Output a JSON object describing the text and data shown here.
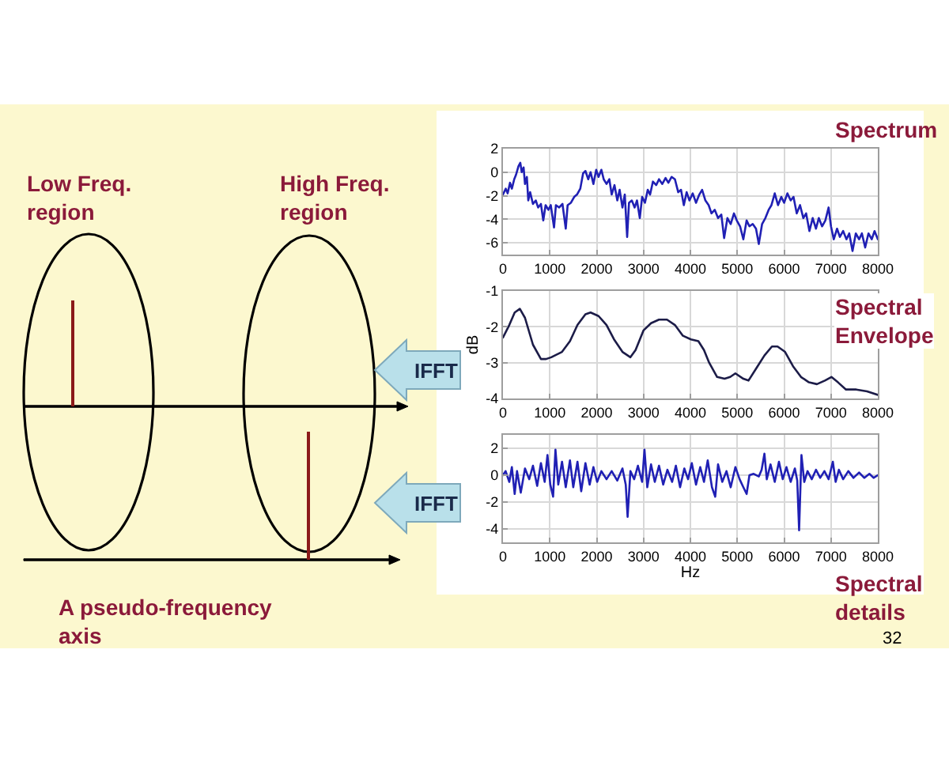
{
  "chart_data": [
    {
      "type": "other",
      "annotations": [
        "Low Freq. region",
        "High Freq. region",
        "IFFT",
        "IFFT",
        "A pseudo-frequency axis",
        "32"
      ]
    },
    {
      "type": "line",
      "title": "Spectrum",
      "grid": true,
      "xlim": [
        0,
        8000
      ],
      "xticks": [
        0,
        1000,
        2000,
        3000,
        4000,
        5000,
        6000,
        7000,
        8000
      ],
      "ylim": [
        -7,
        2
      ],
      "yticks": [
        -6,
        -4,
        -2,
        0,
        2
      ],
      "x": [
        0,
        60,
        100,
        150,
        190,
        240,
        280,
        330,
        370,
        400,
        440,
        470,
        510,
        540,
        580,
        640,
        700,
        750,
        810,
        860,
        910,
        970,
        1020,
        1090,
        1130,
        1200,
        1270,
        1340,
        1380,
        1450,
        1520,
        1580,
        1650,
        1710,
        1760,
        1820,
        1870,
        1930,
        1990,
        2040,
        2100,
        2150,
        2210,
        2270,
        2320,
        2380,
        2440,
        2490,
        2550,
        2600,
        2650,
        2690,
        2750,
        2810,
        2860,
        2920,
        2970,
        3030,
        3090,
        3140,
        3200,
        3270,
        3330,
        3400,
        3470,
        3530,
        3600,
        3670,
        3740,
        3800,
        3860,
        3920,
        3980,
        4050,
        4120,
        4190,
        4250,
        4320,
        4390,
        4450,
        4520,
        4590,
        4660,
        4720,
        4790,
        4860,
        4930,
        4990,
        5060,
        5130,
        5200,
        5260,
        5330,
        5400,
        5460,
        5530,
        5600,
        5670,
        5730,
        5800,
        5870,
        5940,
        6000,
        6070,
        6140,
        6200,
        6270,
        6340,
        6410,
        6470,
        6540,
        6610,
        6680,
        6740,
        6810,
        6880,
        6950,
        7000,
        7060,
        7130,
        7190,
        7260,
        7330,
        7390,
        7460,
        7530,
        7600,
        7660,
        7730,
        7800,
        7870,
        7930,
        8000
      ],
      "series": [
        {
          "color": "#2020b4",
          "values": [
            -1.9,
            -1.4,
            -1.8,
            -0.9,
            -1.4,
            -0.6,
            -0.2,
            0.5,
            0.8,
            0,
            0.4,
            -1,
            -0.4,
            -2.4,
            -1.7,
            -2.7,
            -2.4,
            -3,
            -2.7,
            -4.1,
            -2.8,
            -3.2,
            -2.8,
            -4.7,
            -2.8,
            -3,
            -2.7,
            -4.8,
            -2.8,
            -2.6,
            -2.1,
            -1.9,
            -1.4,
            -0.1,
            0.1,
            -0.6,
            0,
            -1,
            0.2,
            -0.4,
            0.2,
            -0.6,
            -1,
            -0.6,
            -1.9,
            -1.1,
            -2.4,
            -1.5,
            -3,
            -1.9,
            -5.5,
            -2.6,
            -2.4,
            -3,
            -2.4,
            -3.9,
            -2.1,
            -2.6,
            -1.5,
            -1.9,
            -0.8,
            -1.1,
            -0.6,
            -1,
            -0.5,
            -0.9,
            -0.4,
            -0.6,
            -1.7,
            -1.5,
            -2.8,
            -1.7,
            -2.4,
            -1.8,
            -2.6,
            -1.9,
            -1.5,
            -2.4,
            -2.8,
            -3.5,
            -3.2,
            -3.9,
            -3.6,
            -5.6,
            -3.9,
            -4.4,
            -3.5,
            -4.1,
            -4.6,
            -5.7,
            -4.1,
            -4.6,
            -4.4,
            -4.8,
            -6.1,
            -4.4,
            -3.9,
            -3.2,
            -2.8,
            -1.8,
            -2.8,
            -2.1,
            -2.6,
            -1.8,
            -2.4,
            -2.1,
            -3.5,
            -2.8,
            -3.9,
            -3.5,
            -5,
            -3.9,
            -4.8,
            -3.9,
            -4.6,
            -4.1,
            -3,
            -4.6,
            -5.7,
            -4.8,
            -5.5,
            -5,
            -5.7,
            -5.2,
            -6.7,
            -5.2,
            -5.7,
            -5.2,
            -6.4,
            -5.2,
            -5.7,
            -5,
            -5.7
          ]
        }
      ]
    },
    {
      "type": "line",
      "title": "Spectral Envelope",
      "ylabel": "dB",
      "grid": true,
      "xlim": [
        0,
        8000
      ],
      "xticks": [
        0,
        1000,
        2000,
        3000,
        4000,
        5000,
        6000,
        7000,
        8000
      ],
      "ylim": [
        -4,
        -1
      ],
      "yticks": [
        -4,
        -3,
        -2,
        -1
      ],
      "x": [
        0,
        135,
        250,
        360,
        470,
        640,
        810,
        920,
        1030,
        1260,
        1430,
        1590,
        1760,
        1870,
        2040,
        2210,
        2370,
        2550,
        2720,
        2830,
        3000,
        3160,
        3330,
        3500,
        3670,
        3840,
        4010,
        4170,
        4290,
        4400,
        4570,
        4730,
        4850,
        4960,
        5130,
        5240,
        5410,
        5580,
        5740,
        5860,
        6020,
        6190,
        6360,
        6530,
        6700,
        6870,
        7010,
        7150,
        7320,
        7540,
        7770,
        8000
      ],
      "series": [
        {
          "color": "#1c1c48",
          "values": [
            -2.3,
            -1.95,
            -1.6,
            -1.5,
            -1.75,
            -2.5,
            -2.9,
            -2.9,
            -2.85,
            -2.7,
            -2.4,
            -1.95,
            -1.65,
            -1.6,
            -1.7,
            -1.95,
            -2.35,
            -2.7,
            -2.85,
            -2.65,
            -2.1,
            -1.9,
            -1.8,
            -1.8,
            -1.95,
            -2.25,
            -2.35,
            -2.4,
            -2.65,
            -3,
            -3.4,
            -3.45,
            -3.4,
            -3.3,
            -3.45,
            -3.5,
            -3.15,
            -2.8,
            -2.55,
            -2.55,
            -2.7,
            -3.1,
            -3.4,
            -3.55,
            -3.6,
            -3.5,
            -3.4,
            -3.55,
            -3.75,
            -3.75,
            -3.8,
            -3.9
          ]
        }
      ]
    },
    {
      "type": "line",
      "title": "Spectral details",
      "xlabel": "Hz",
      "grid": true,
      "xlim": [
        0,
        8000
      ],
      "xticks": [
        0,
        1000,
        2000,
        3000,
        4000,
        5000,
        6000,
        7000,
        8000
      ],
      "ylim": [
        -5,
        3
      ],
      "yticks": [
        -4,
        -2,
        0,
        2
      ],
      "x": [
        0,
        56,
        135,
        190,
        250,
        300,
        380,
        470,
        560,
        640,
        730,
        810,
        890,
        950,
        1010,
        1070,
        1120,
        1180,
        1260,
        1340,
        1430,
        1500,
        1590,
        1670,
        1760,
        1850,
        1930,
        2010,
        2100,
        2210,
        2320,
        2440,
        2550,
        2620,
        2660,
        2720,
        2800,
        2880,
        2970,
        3020,
        3080,
        3160,
        3240,
        3330,
        3420,
        3510,
        3610,
        3690,
        3780,
        3870,
        3950,
        4030,
        4120,
        4210,
        4290,
        4370,
        4460,
        4530,
        4590,
        4680,
        4770,
        4860,
        4960,
        5050,
        5130,
        5200,
        5260,
        5350,
        5460,
        5520,
        5580,
        5630,
        5710,
        5800,
        5890,
        5970,
        6050,
        6140,
        6230,
        6280,
        6320,
        6370,
        6430,
        6500,
        6590,
        6680,
        6770,
        6860,
        6950,
        7040,
        7100,
        7170,
        7260,
        7370,
        7480,
        7600,
        7710,
        7820,
        7910,
        8000
      ],
      "series": [
        {
          "color": "#2020b4",
          "values": [
            0,
            0.3,
            -0.5,
            0.6,
            -1.4,
            0.3,
            -1.3,
            0.5,
            -0.3,
            0.7,
            -0.8,
            0.9,
            -0.5,
            1.5,
            -0.7,
            -1.6,
            1.9,
            -0.7,
            1,
            -0.9,
            1.1,
            -0.9,
            1,
            -1.2,
            0.9,
            -0.7,
            0.6,
            -0.5,
            0.3,
            -0.3,
            0.3,
            -0.4,
            0.5,
            -0.7,
            -3.1,
            0.3,
            -0.3,
            0.7,
            -0.5,
            1.9,
            -0.9,
            0.8,
            -0.5,
            0.7,
            -0.7,
            0.4,
            -0.5,
            0.7,
            -0.9,
            0.5,
            -0.3,
            0.9,
            -0.7,
            0.6,
            -0.5,
            1.1,
            -0.9,
            -1.6,
            0.8,
            -0.5,
            0.3,
            -0.9,
            0.6,
            -0.3,
            -0.9,
            -1.4,
            0,
            0.1,
            -0.1,
            0.4,
            1.6,
            -0.3,
            0.8,
            -0.5,
            1,
            -0.3,
            0.6,
            -0.5,
            0.5,
            -0.4,
            -4.1,
            1.5,
            -0.5,
            0.3,
            -0.3,
            0.4,
            -0.2,
            0.3,
            -0.3,
            1,
            -0.5,
            0.4,
            -0.3,
            0.3,
            -0.2,
            0.2,
            -0.2,
            0.1,
            -0.2,
            0
          ]
        }
      ]
    }
  ]
}
